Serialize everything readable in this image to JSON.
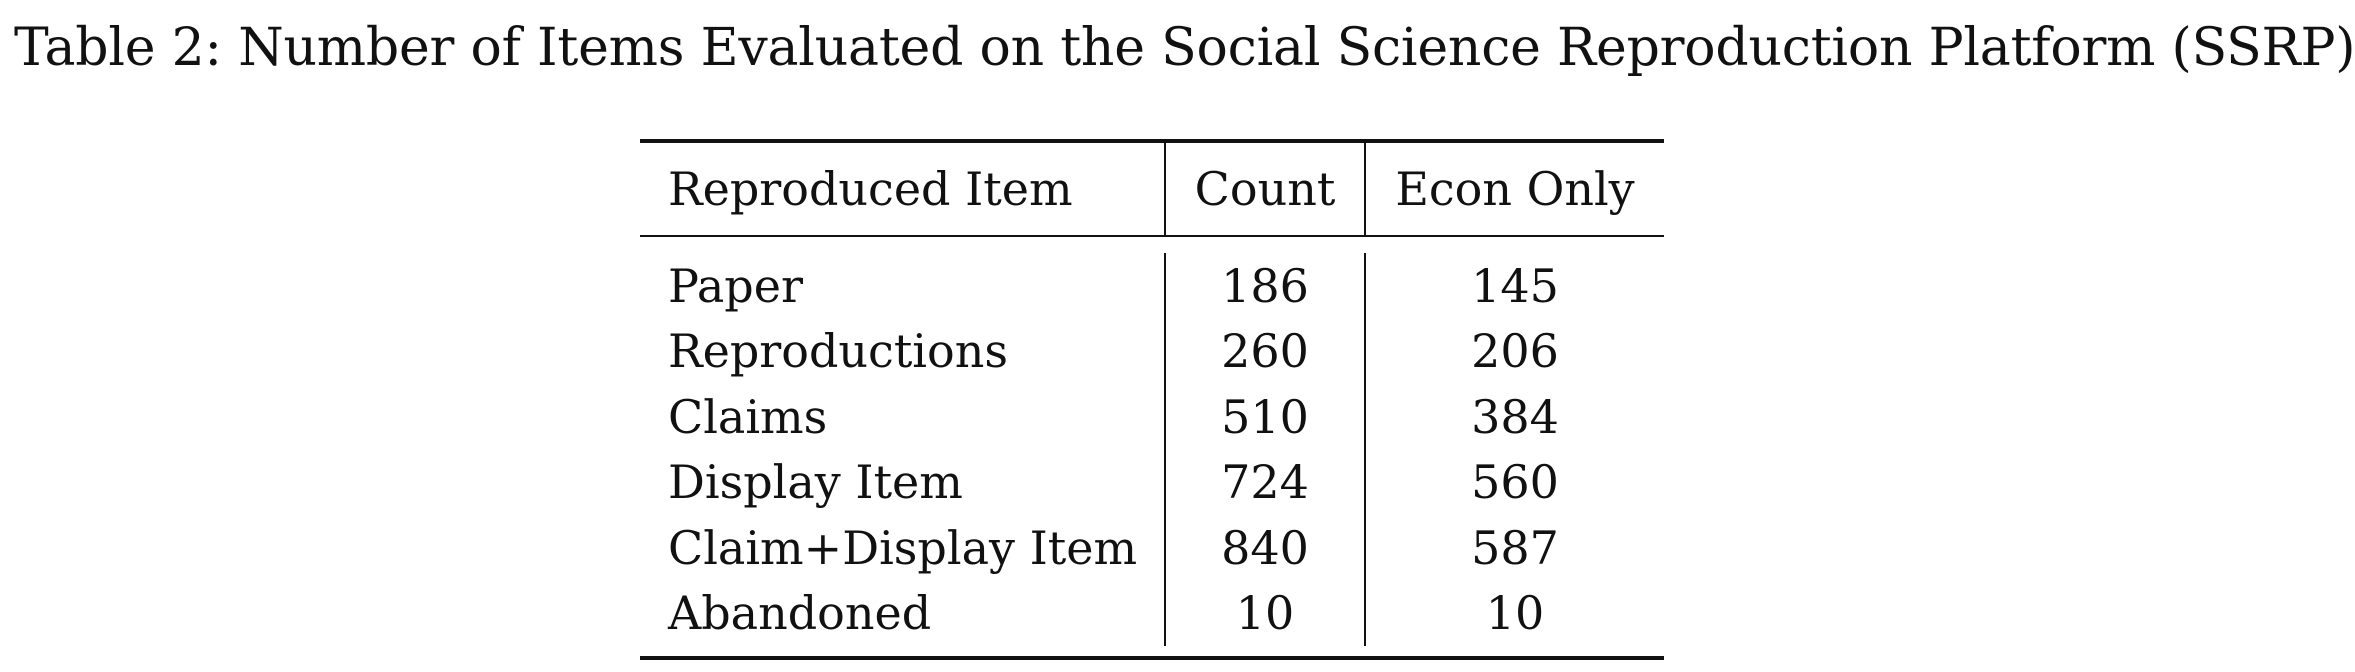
{
  "caption": "Table 2: Number of Items Evaluated on the Social Science Reproduction Platform (SSRP)",
  "table": {
    "headers": [
      "Reproduced Item",
      "Count",
      "Econ Only"
    ],
    "rows": [
      {
        "item": "Paper",
        "count": "186",
        "econ": "145"
      },
      {
        "item": "Reproductions",
        "count": "260",
        "econ": "206"
      },
      {
        "item": "Claims",
        "count": "510",
        "econ": "384"
      },
      {
        "item": "Display Item",
        "count": "724",
        "econ": "560"
      },
      {
        "item": "Claim+Display Item",
        "count": "840",
        "econ": "587"
      },
      {
        "item": "Abandoned",
        "count": "10",
        "econ": "10"
      }
    ]
  }
}
